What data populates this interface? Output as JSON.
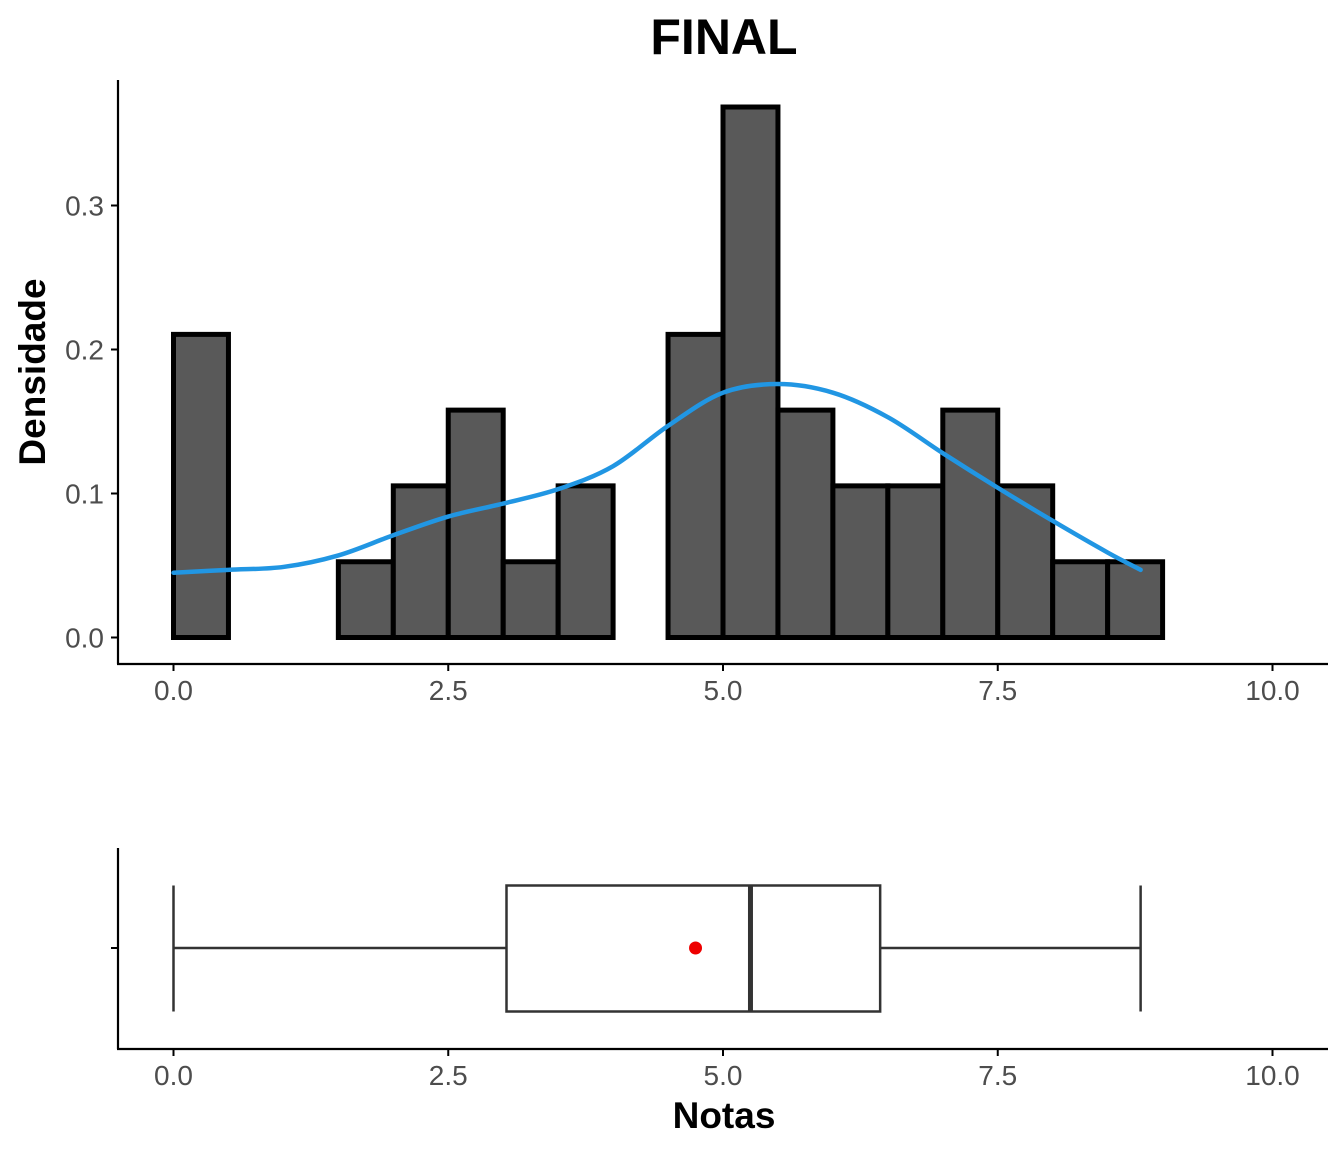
{
  "chart_data": [
    {
      "type": "histogram",
      "title": "FINAL",
      "ylabel": "Densidade",
      "xlabel": "",
      "xlim": [
        -0.5,
        10.5
      ],
      "ylim": [
        -0.018,
        0.385
      ],
      "x_ticks": [
        0.0,
        2.5,
        5.0,
        7.5,
        10.0
      ],
      "x_tick_labels": [
        "0.0",
        "2.5",
        "5.0",
        "7.5",
        "10.0"
      ],
      "y_ticks": [
        0.0,
        0.1,
        0.2,
        0.3
      ],
      "y_tick_labels": [
        "0.0",
        "0.1",
        "0.2",
        "0.3"
      ],
      "bin_width": 0.5,
      "bins": [
        {
          "x0": 0.0,
          "x1": 0.5,
          "density": 0.2105
        },
        {
          "x0": 0.5,
          "x1": 1.0,
          "density": 0.0
        },
        {
          "x0": 1.0,
          "x1": 1.5,
          "density": 0.0
        },
        {
          "x0": 1.5,
          "x1": 2.0,
          "density": 0.0526
        },
        {
          "x0": 2.0,
          "x1": 2.5,
          "density": 0.1053
        },
        {
          "x0": 2.5,
          "x1": 3.0,
          "density": 0.1579
        },
        {
          "x0": 3.0,
          "x1": 3.5,
          "density": 0.0526
        },
        {
          "x0": 3.5,
          "x1": 4.0,
          "density": 0.1053
        },
        {
          "x0": 4.0,
          "x1": 4.5,
          "density": 0.0
        },
        {
          "x0": 4.5,
          "x1": 5.0,
          "density": 0.2105
        },
        {
          "x0": 5.0,
          "x1": 5.5,
          "density": 0.3684
        },
        {
          "x0": 5.5,
          "x1": 6.0,
          "density": 0.1579
        },
        {
          "x0": 6.0,
          "x1": 6.5,
          "density": 0.1053
        },
        {
          "x0": 6.5,
          "x1": 7.0,
          "density": 0.1053
        },
        {
          "x0": 7.0,
          "x1": 7.5,
          "density": 0.1579
        },
        {
          "x0": 7.5,
          "x1": 8.0,
          "density": 0.1053
        },
        {
          "x0": 8.0,
          "x1": 8.5,
          "density": 0.0526
        },
        {
          "x0": 8.5,
          "x1": 9.0,
          "density": 0.0526
        },
        {
          "x0": 9.0,
          "x1": 9.5,
          "density": 0.0
        },
        {
          "x0": 9.5,
          "x1": 10.0,
          "density": 0.0
        }
      ],
      "density_curve": {
        "color": "#2196e3",
        "x": [
          0.0,
          0.5,
          1.0,
          1.5,
          2.0,
          2.5,
          3.0,
          3.5,
          4.0,
          4.5,
          5.0,
          5.5,
          6.0,
          6.5,
          7.0,
          7.5,
          8.0,
          8.5,
          8.8
        ],
        "y": [
          0.045,
          0.047,
          0.049,
          0.057,
          0.071,
          0.084,
          0.093,
          0.103,
          0.119,
          0.147,
          0.17,
          0.176,
          0.17,
          0.153,
          0.128,
          0.104,
          0.081,
          0.059,
          0.047
        ]
      },
      "bar_fill": "#595959",
      "bar_outline": "#000000",
      "grid": false
    },
    {
      "type": "boxplot",
      "xlabel": "Notas",
      "xlim": [
        -0.5,
        10.5
      ],
      "x_ticks": [
        0.0,
        2.5,
        5.0,
        7.5,
        10.0
      ],
      "x_tick_labels": [
        "0.0",
        "2.5",
        "5.0",
        "7.5",
        "10.0"
      ],
      "whisker_low": 0.0,
      "q1": 3.03,
      "median": 5.25,
      "q3": 6.43,
      "whisker_high": 8.8,
      "mean": 4.75,
      "mean_color": "#ee0000",
      "grid": false
    }
  ]
}
